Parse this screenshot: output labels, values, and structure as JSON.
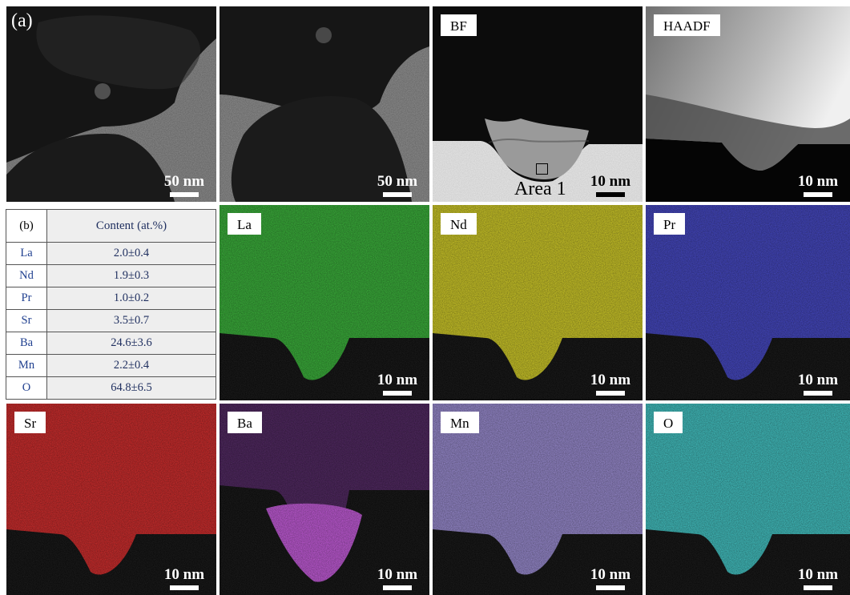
{
  "row1": {
    "panel_letter": "(a)",
    "tem1": {
      "scale": "50 nm"
    },
    "tem2": {
      "scale": "50 nm"
    },
    "bf": {
      "label": "BF",
      "scale": "10 nm",
      "area": "Area 1"
    },
    "haadf": {
      "label": "HAADF",
      "scale": "10 nm"
    }
  },
  "table": {
    "panel_letter": "(b)",
    "header": "Content (at.%)",
    "rows": [
      {
        "element": "La",
        "value": "2.0±0.4"
      },
      {
        "element": "Nd",
        "value": "1.9±0.3"
      },
      {
        "element": "Pr",
        "value": "1.0±0.2"
      },
      {
        "element": "Sr",
        "value": "3.5±0.7"
      },
      {
        "element": "Ba",
        "value": "24.6±3.6"
      },
      {
        "element": "Mn",
        "value": "2.2±0.4"
      },
      {
        "element": "O",
        "value": "64.8±6.5"
      }
    ]
  },
  "maps": [
    {
      "element": "La",
      "scale": "10 nm",
      "color": "#2fb62f"
    },
    {
      "element": "Nd",
      "scale": "10 nm",
      "color": "#d8d21a"
    },
    {
      "element": "Pr",
      "scale": "10 nm",
      "color": "#3b3ec8"
    },
    {
      "element": "Sr",
      "scale": "10 nm",
      "color": "#d82020"
    },
    {
      "element": "Ba",
      "scale": "10 nm",
      "color": "#7a2a9a"
    },
    {
      "element": "Mn",
      "scale": "10 nm",
      "color": "#9a8ad8"
    },
    {
      "element": "O",
      "scale": "10 nm",
      "color": "#38c8c8"
    }
  ]
}
